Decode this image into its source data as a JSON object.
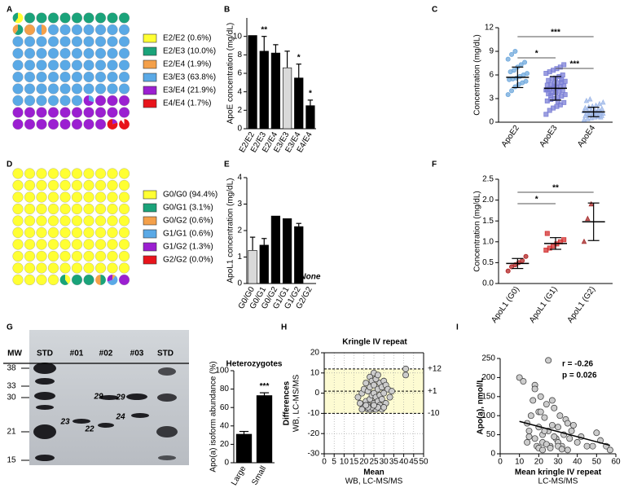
{
  "chart_data": [
    {
      "type": "waffle",
      "panel": "A",
      "categories": [
        "E2/E2 (0.6%)",
        "E2/E3 (10.0%)",
        "E2/E4 (1.9%)",
        "E3/E3 (63.8%)",
        "E3/E4 (21.9%)",
        "E4/E4 (1.7%)"
      ],
      "values": [
        0.6,
        10.0,
        1.9,
        63.8,
        21.9,
        1.7
      ],
      "colors": [
        "#ffff33",
        "#1aa37a",
        "#f4a04a",
        "#5aa9e6",
        "#9b1fd1",
        "#e8141b"
      ]
    },
    {
      "type": "bar",
      "panel": "B",
      "y_label": "ApoE concentration (mg/dL)",
      "categories": [
        "E2/E2",
        "E2/E3",
        "E2/E4",
        "E3/E3",
        "E3/E4",
        "E4/E4"
      ],
      "values": [
        10.1,
        8.4,
        8.2,
        6.6,
        5.5,
        2.5
      ],
      "errors": [
        null,
        1.6,
        0.9,
        1.8,
        1.5,
        0.6
      ],
      "colors": [
        "#000000",
        "#000000",
        "#000000",
        "#d9d9d9",
        "#000000",
        "#000000"
      ],
      "annotations": [
        null,
        "**",
        null,
        null,
        "*",
        "*"
      ],
      "ylim": [
        0,
        12
      ],
      "yticks": [
        0,
        2,
        4,
        6,
        8,
        10
      ]
    },
    {
      "type": "dot",
      "panel": "C",
      "y_label": "Concentration (mg/dL)",
      "categories": [
        "ApoE2",
        "ApoE3",
        "ApoE4"
      ],
      "values": [
        [
          3.5,
          4.0,
          4.5,
          4.8,
          5.0,
          5.2,
          5.4,
          5.5,
          5.6,
          5.8,
          6.0,
          6.2,
          6.4,
          6.6,
          7.0,
          7.3,
          7.6,
          8.0,
          8.6,
          9.0
        ],
        [
          1.0,
          1.5,
          1.8,
          2.0,
          2.2,
          2.5,
          2.7,
          2.9,
          3.0,
          3.2,
          3.3,
          3.5,
          3.6,
          3.7,
          3.8,
          3.9,
          4.0,
          4.1,
          4.2,
          4.3,
          4.4,
          4.5,
          4.6,
          4.7,
          4.8,
          4.9,
          5.0,
          5.1,
          5.2,
          5.3,
          5.5,
          5.6,
          5.8,
          6.0,
          6.2,
          6.4,
          6.6,
          6.8,
          7.0,
          7.3,
          4.1,
          3.4,
          4.6,
          2.6,
          5.4
        ],
        [
          0.3,
          0.4,
          0.5,
          0.6,
          0.7,
          0.8,
          0.8,
          0.9,
          0.9,
          1.0,
          1.0,
          1.1,
          1.1,
          1.2,
          1.2,
          1.3,
          1.3,
          1.4,
          1.4,
          1.5,
          1.5,
          1.6,
          1.7,
          1.8,
          1.9,
          2.0,
          2.1,
          2.3,
          2.5,
          2.7,
          2.9,
          1.0,
          1.2,
          0.6
        ]
      ],
      "means": [
        5.7,
        4.3,
        1.3
      ],
      "sds": [
        1.3,
        1.5,
        0.6
      ],
      "colors": [
        "#6fa8dc",
        "#7b7fd6",
        "#9fb8e8"
      ],
      "markers": [
        "circle",
        "square",
        "triangle"
      ],
      "comparisons": [
        {
          "pair": [
            0,
            2
          ],
          "text": "***"
        },
        {
          "pair": [
            0,
            1
          ],
          "text": "*"
        },
        {
          "pair": [
            1,
            2
          ],
          "text": "***"
        }
      ],
      "ylim": [
        0,
        12
      ],
      "yticks": [
        0,
        3,
        6,
        9,
        12
      ]
    },
    {
      "type": "waffle",
      "panel": "D",
      "categories": [
        "G0/G0 (94.4%)",
        "G0/G1 (3.1%)",
        "G0/G2 (0.6%)",
        "G1/G1 (0.6%)",
        "G1/G2 (1.3%)",
        "G2/G2 (0.0%)"
      ],
      "values": [
        94.4,
        3.1,
        0.6,
        0.6,
        1.3,
        0
      ],
      "colors": [
        "#ffff33",
        "#1aa37a",
        "#f4a04a",
        "#5aa9e6",
        "#9b1fd1",
        "#e8141b"
      ]
    },
    {
      "type": "bar",
      "panel": "E",
      "y_label": "ApoL1 concentration (mg/dL)",
      "categories": [
        "G0/G0",
        "G0/G1",
        "G0/G2",
        "G1/G1",
        "G1/G2",
        "G2/G2"
      ],
      "values": [
        1.25,
        1.45,
        2.55,
        2.45,
        2.15,
        null
      ],
      "errors": [
        0.5,
        0.25,
        null,
        null,
        0.12,
        null
      ],
      "colors": [
        "#d9d9d9",
        "#000000",
        "#000000",
        "#000000",
        "#000000",
        "#000000"
      ],
      "annotations": [
        null,
        null,
        null,
        null,
        null,
        "None"
      ],
      "ylim": [
        0,
        4
      ],
      "yticks": [
        0,
        1,
        2,
        3,
        4
      ]
    },
    {
      "type": "dot",
      "panel": "F",
      "y_label": "Concentration (mg/dL)",
      "categories": [
        "ApoL1 (G0)",
        "ApoL1 (G1)",
        "ApoL1 (G2)"
      ],
      "values": [
        [
          0.3,
          0.4,
          0.45,
          0.5,
          0.55,
          0.65
        ],
        [
          0.8,
          0.85,
          0.9,
          0.95,
          1.0,
          1.05,
          1.2
        ],
        [
          1.0,
          1.55,
          1.9
        ]
      ],
      "means": [
        0.48,
        0.96,
        1.48
      ],
      "sds": [
        0.12,
        0.14,
        0.45
      ],
      "colors": [
        "#b22222",
        "#d32f2f",
        "#a52a2a"
      ],
      "markers": [
        "circle",
        "square",
        "triangle"
      ],
      "comparisons": [
        {
          "pair": [
            0,
            1
          ],
          "text": "*"
        },
        {
          "pair": [
            0,
            2
          ],
          "text": "**"
        }
      ],
      "ylim": [
        0,
        2.5
      ],
      "yticks": [
        {
          "value": 0,
          "label": "0.0"
        },
        0.5,
        {
          "value": 1,
          "label": "1.0"
        },
        1.5,
        {
          "value": 2,
          "label": "2.0"
        },
        2.5
      ]
    },
    {
      "type": "blot",
      "panel": "G",
      "mw_label": "MW",
      "mw_markers": [
        38,
        33,
        30,
        21,
        15
      ],
      "lanes": [
        "STD",
        "#01",
        "#02",
        "#03",
        "STD"
      ],
      "lane_colors": [
        "#1f2a6b",
        "#e8141b",
        "#e8141b",
        "#e8141b",
        "#1f2a6b"
      ],
      "band_labels": [
        23,
        22,
        29,
        29,
        24
      ]
    },
    {
      "type": "bar",
      "title": "Heterozygotes",
      "y_label": "Apo(a) isoform abundance (%)",
      "categories": [
        "Large",
        "Small"
      ],
      "values": [
        31,
        73
      ],
      "errors": [
        3,
        3
      ],
      "colors": [
        "#000000",
        "#000000"
      ],
      "annotations": [
        null,
        "***"
      ],
      "ylim": [
        0,
        100
      ],
      "yticks": [
        0,
        20,
        40,
        60,
        80,
        100
      ]
    },
    {
      "type": "scatter",
      "panel": "H",
      "title": "Kringle IV repeat",
      "x_label": "Mean",
      "x_sublabel": "WB, LC-MS/MS",
      "y_label": "Differences",
      "y_sublabel": "WB, LC-MS/MS",
      "x": [
        17,
        18,
        19,
        20,
        20,
        21,
        21,
        22,
        22,
        22,
        23,
        23,
        23,
        24,
        24,
        24,
        25,
        25,
        25,
        25,
        26,
        26,
        26,
        27,
        27,
        27,
        28,
        28,
        28,
        29,
        29,
        30,
        30,
        31,
        31,
        32,
        33,
        34,
        41,
        41,
        19,
        23,
        26,
        29,
        24,
        22,
        27,
        30,
        25,
        21
      ],
      "y": [
        -2,
        -5,
        0,
        -7,
        2,
        -4,
        5,
        -8,
        1,
        -6,
        3,
        -3,
        8,
        -1,
        6,
        -8,
        0,
        4,
        -5,
        10,
        -2,
        7,
        -7,
        2,
        -4,
        9,
        -1,
        5,
        -6,
        3,
        -3,
        6,
        0,
        -5,
        4,
        2,
        -2,
        1,
        12,
        9,
        -8,
        -8,
        -8,
        -8,
        -7,
        -7,
        -7,
        -7,
        -6,
        -6
      ],
      "xlim": [
        0,
        50
      ],
      "xticks": [
        0,
        5,
        10,
        15,
        20,
        25,
        30,
        35,
        40,
        45,
        50
      ],
      "ylim": [
        -30,
        20
      ],
      "yticks": [
        -30,
        -20,
        -10,
        0,
        10,
        20
      ],
      "grid": true,
      "reference_lines": [
        {
          "value": 12,
          "label": "+12"
        },
        {
          "value": 1,
          "label": "+1"
        },
        -10
      ],
      "point_color": "#cccccc",
      "band_color": "#fdfbd2"
    },
    {
      "type": "scatter",
      "panel": "I",
      "x_label": "Mean kringle IV repeat",
      "x_sublabel": "LC-MS/MS",
      "y_label": "Apo(a), nmol/L",
      "x": [
        10,
        12,
        14,
        15,
        16,
        17,
        18,
        18,
        19,
        20,
        20,
        21,
        22,
        22,
        23,
        24,
        25,
        25,
        26,
        27,
        27,
        28,
        29,
        30,
        30,
        31,
        32,
        33,
        34,
        35,
        36,
        37,
        38,
        40,
        42,
        45,
        48,
        50,
        52,
        55,
        57,
        20,
        22,
        24,
        26,
        28,
        30,
        32,
        35,
        15,
        14,
        18,
        21,
        23
      ],
      "y": [
        200,
        190,
        30,
        60,
        100,
        140,
        180,
        40,
        20,
        70,
        110,
        150,
        50,
        30,
        95,
        130,
        245,
        60,
        20,
        140,
        75,
        120,
        40,
        30,
        70,
        100,
        20,
        50,
        90,
        80,
        40,
        60,
        75,
        30,
        45,
        20,
        20,
        55,
        35,
        20,
        10,
        15,
        10,
        25,
        15,
        45,
        20,
        12,
        10,
        45,
        80,
        170,
        110,
        60
      ],
      "xlim": [
        0,
        60
      ],
      "xticks": [
        0,
        10,
        20,
        30,
        40,
        50,
        60
      ],
      "ylim": [
        0,
        250
      ],
      "yticks": [
        0,
        50,
        100,
        150,
        200,
        250
      ],
      "point_color": "#cccccc",
      "regression": {
        "x": [
          10,
          57
        ],
        "y": [
          85,
          22
        ]
      },
      "annotations": [
        "r = -0.26",
        "p = 0.026"
      ]
    }
  ]
}
